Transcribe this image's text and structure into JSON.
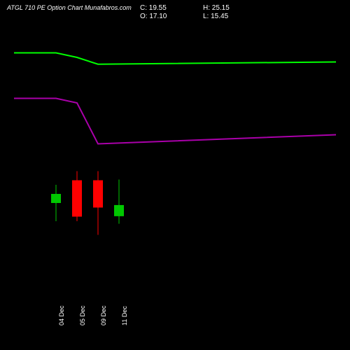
{
  "title": "ATGL 710 PE Option Chart Munafabros.com",
  "ohlc": {
    "c": "C: 19.55",
    "o": "O: 17.10",
    "h": "H: 25.15",
    "l": "L: 15.45"
  },
  "chart": {
    "type": "candlestick",
    "background": "#000000",
    "text_color": "#ffffff",
    "line_upper_color": "#00ff00",
    "line_lower_color": "#aa00aa",
    "candle_up_color": "#00c800",
    "candle_down_color": "#ff0000",
    "line_width": 2,
    "wick_width": 1,
    "candle_width": 14,
    "x_labels": [
      "04 Dec",
      "05 Dec",
      "09 Dec",
      "11 Dec"
    ],
    "ylim": [
      0,
      60
    ],
    "upper_line": [
      53,
      53,
      52,
      50.5,
      51
    ],
    "lower_line": [
      43,
      43,
      42,
      33,
      35
    ],
    "candles": [
      {
        "o": 20,
        "h": 24,
        "l": 16,
        "c": 22
      },
      {
        "o": 25,
        "h": 27,
        "l": 16,
        "c": 17
      },
      {
        "o": 25,
        "h": 27,
        "l": 13,
        "c": 19
      },
      {
        "o": 17.1,
        "h": 25.15,
        "l": 15.45,
        "c": 19.55
      }
    ]
  }
}
